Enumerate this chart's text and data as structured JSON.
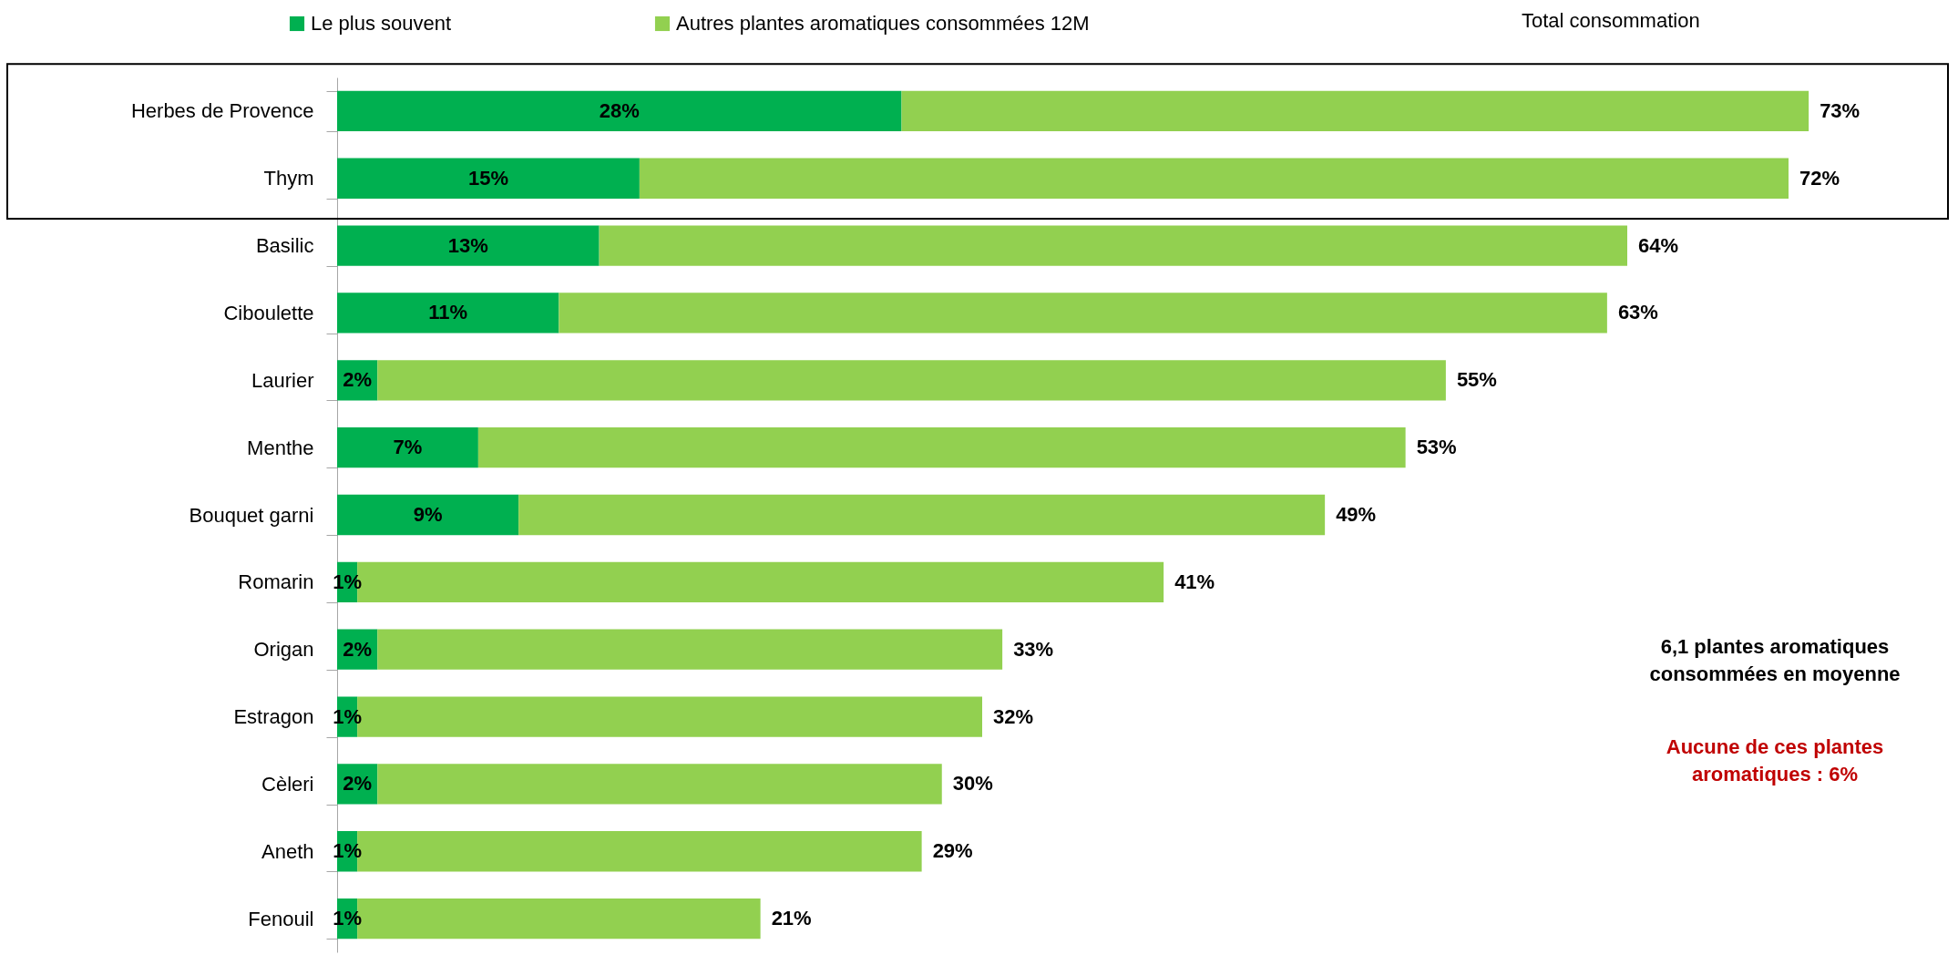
{
  "chart_data": {
    "type": "bar",
    "orientation": "horizontal",
    "stacked": true,
    "categories": [
      "Herbes de Provence",
      "Thym",
      "Basilic",
      "Ciboulette",
      "Laurier",
      "Menthe",
      "Bouquet garni",
      "Romarin",
      "Origan",
      "Estragon",
      "Cèleri",
      "Aneth",
      "Fenouil"
    ],
    "series": [
      {
        "name": "Le plus souvent",
        "color": "#00b050",
        "values": [
          28,
          15,
          13,
          11,
          2,
          7,
          9,
          1,
          2,
          1,
          2,
          1,
          1
        ],
        "value_labels": [
          "28%",
          "15%",
          "13%",
          "11%",
          "2%",
          "7%",
          "9%",
          "1%",
          "2%",
          "1%",
          "2%",
          "1%",
          "1%"
        ]
      },
      {
        "name": "Autres plantes aromatiques consommées 12M",
        "color": "#92d050",
        "values": [
          45,
          57,
          51,
          52,
          53,
          46,
          40,
          40,
          31,
          31,
          28,
          28,
          20
        ]
      }
    ],
    "totals": [
      "73%",
      "72%",
      "64%",
      "63%",
      "55%",
      "53%",
      "49%",
      "41%",
      "33%",
      "32%",
      "30%",
      "29%",
      "21%"
    ],
    "xlim": [
      0,
      80
    ],
    "tick_labels": "y",
    "legend": "top",
    "annotations": [
      "Total consommation",
      "6,1 plantes aromatiques consommées en moyenne",
      "Aucune de ces plantes aromatiques : 6%"
    ]
  }
}
